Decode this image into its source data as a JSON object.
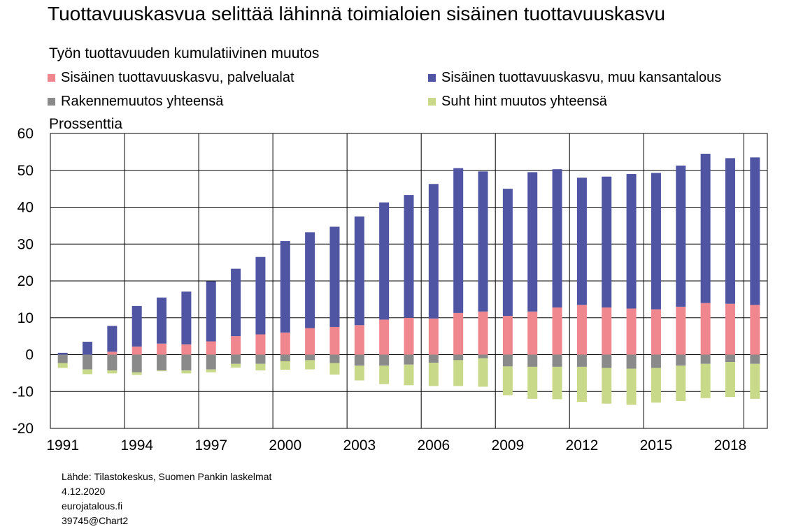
{
  "title": "Tuottavuuskasvua selittää lähinnä toimialoien sisäinen tuottavuuskasvu",
  "subtitle": "Työn tuottavuuden kumulatiivinen muutos",
  "legend": [
    {
      "label": "Sisäinen tuottavuuskasvu, palvelualat",
      "color": "#f0868e"
    },
    {
      "label": "Sisäinen tuottavuuskasvu, muu kansantalous",
      "color": "#4f55a2"
    },
    {
      "label": "Rakennemuutos yhteensä",
      "color": "#8a8a8a"
    },
    {
      "label": "Suht hint muutos yhteensä",
      "color": "#c8d98a"
    }
  ],
  "footer": [
    "Lähde: Tilastokeskus, Suomen Pankin laskelmat",
    "4.12.2020",
    "eurojatalous.fi",
    "39745@Chart2"
  ],
  "chart_data": {
    "type": "bar",
    "stacked": true,
    "title": "Tuottavuuskasvua selittää lähinnä toimialoien sisäinen tuottavuuskasvu",
    "subtitle": "Työn tuottavuuden kumulatiivinen muutos",
    "ylabel": "Prossenttia",
    "ylim": [
      -20,
      60
    ],
    "yticks": [
      -20,
      -10,
      0,
      10,
      20,
      30,
      40,
      50,
      60
    ],
    "xtick_labels": [
      "1991",
      "1994",
      "1997",
      "2000",
      "2003",
      "2006",
      "2009",
      "2012",
      "2015",
      "2018"
    ],
    "categories": [
      "1991",
      "1992",
      "1993",
      "1994",
      "1995",
      "1996",
      "1997",
      "1998",
      "1999",
      "2000",
      "2001",
      "2002",
      "2003",
      "2004",
      "2005",
      "2006",
      "2007",
      "2008",
      "2009",
      "2010",
      "2011",
      "2012",
      "2013",
      "2014",
      "2015",
      "2016",
      "2017",
      "2018",
      "2019"
    ],
    "series": [
      {
        "name": "Sisäinen tuottavuuskasvu, palvelualat",
        "color": "#f0868e",
        "values": [
          0,
          0,
          0.8,
          2.2,
          3.0,
          2.8,
          3.6,
          5.0,
          5.5,
          6.0,
          7.2,
          7.5,
          8.0,
          9.5,
          10.0,
          9.8,
          11.3,
          11.7,
          10.5,
          11.7,
          12.8,
          13.5,
          12.8,
          12.5,
          12.3,
          13.0,
          14.0,
          13.8,
          13.5
        ]
      },
      {
        "name": "Sisäinen tuottavuuskasvu, muu kansantalous",
        "color": "#4f55a2",
        "values": [
          0.5,
          3.5,
          7.0,
          11.0,
          12.5,
          14.3,
          16.3,
          18.3,
          21.0,
          24.8,
          26.0,
          27.2,
          29.5,
          31.8,
          33.3,
          36.5,
          39.3,
          38.0,
          34.5,
          37.8,
          37.5,
          34.5,
          35.5,
          36.5,
          37.0,
          38.3,
          40.5,
          39.5,
          40.0
        ]
      },
      {
        "name": "Rakennemuutos yhteensä",
        "color": "#8a8a8a",
        "values": [
          -2.3,
          -4.0,
          -4.3,
          -4.8,
          -4.3,
          -4.3,
          -4.0,
          -2.5,
          -2.5,
          -1.8,
          -1.5,
          -2.3,
          -3.0,
          -3.0,
          -2.7,
          -2.2,
          -1.5,
          -1.0,
          -3.2,
          -3.3,
          -3.3,
          -3.3,
          -3.6,
          -3.8,
          -3.6,
          -3.0,
          -2.5,
          -2.0,
          -2.5
        ]
      },
      {
        "name": "Suht hint muutos yhteensä",
        "color": "#c8d98a",
        "values": [
          -1.3,
          -1.3,
          -0.8,
          -0.7,
          -0.2,
          -0.8,
          -0.8,
          -1.0,
          -1.8,
          -2.3,
          -2.5,
          -3.1,
          -4.0,
          -5.0,
          -5.6,
          -6.3,
          -7.0,
          -7.7,
          -7.8,
          -8.7,
          -8.8,
          -9.5,
          -9.7,
          -9.8,
          -9.4,
          -9.6,
          -9.3,
          -9.5,
          -9.5
        ]
      }
    ]
  }
}
